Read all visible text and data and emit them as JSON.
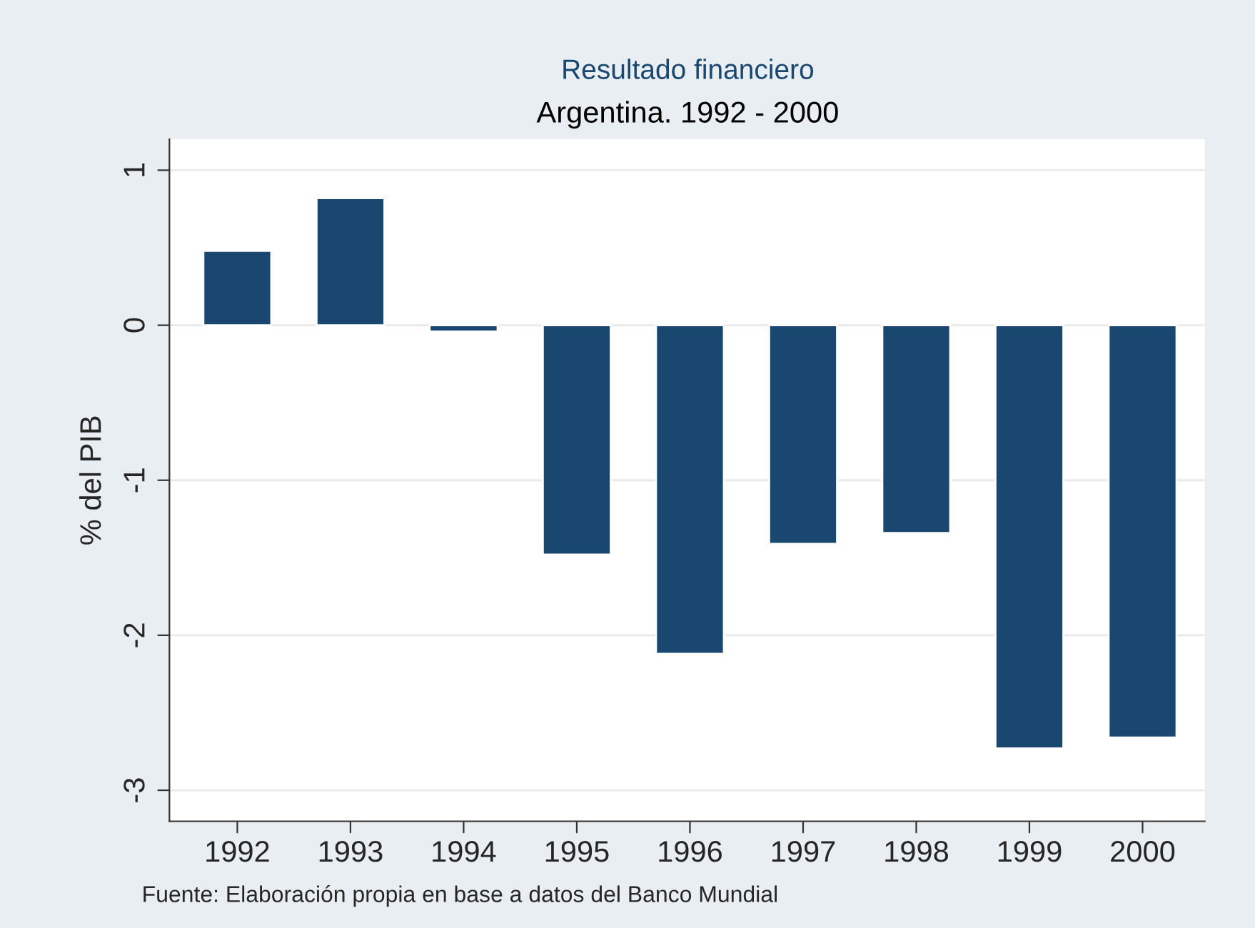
{
  "chart_data": {
    "type": "bar",
    "title": "Resultado financiero",
    "subtitle": "Argentina. 1992 - 2000",
    "ylabel": "% del PIB",
    "categories": [
      "1992",
      "1993",
      "1994",
      "1995",
      "1996",
      "1997",
      "1998",
      "1999",
      "2000"
    ],
    "values": [
      0.48,
      0.82,
      -0.04,
      -1.48,
      -2.12,
      -1.41,
      -1.34,
      -2.73,
      -2.66
    ],
    "color": "#1a476f",
    "ylim": [
      -3.2,
      1.2
    ],
    "yticks": [
      1,
      0,
      -1,
      -2,
      -3
    ],
    "grid": "y",
    "annotations": [
      "Fuente: Elaboración propia en base a datos del Banco Mundial"
    ]
  }
}
